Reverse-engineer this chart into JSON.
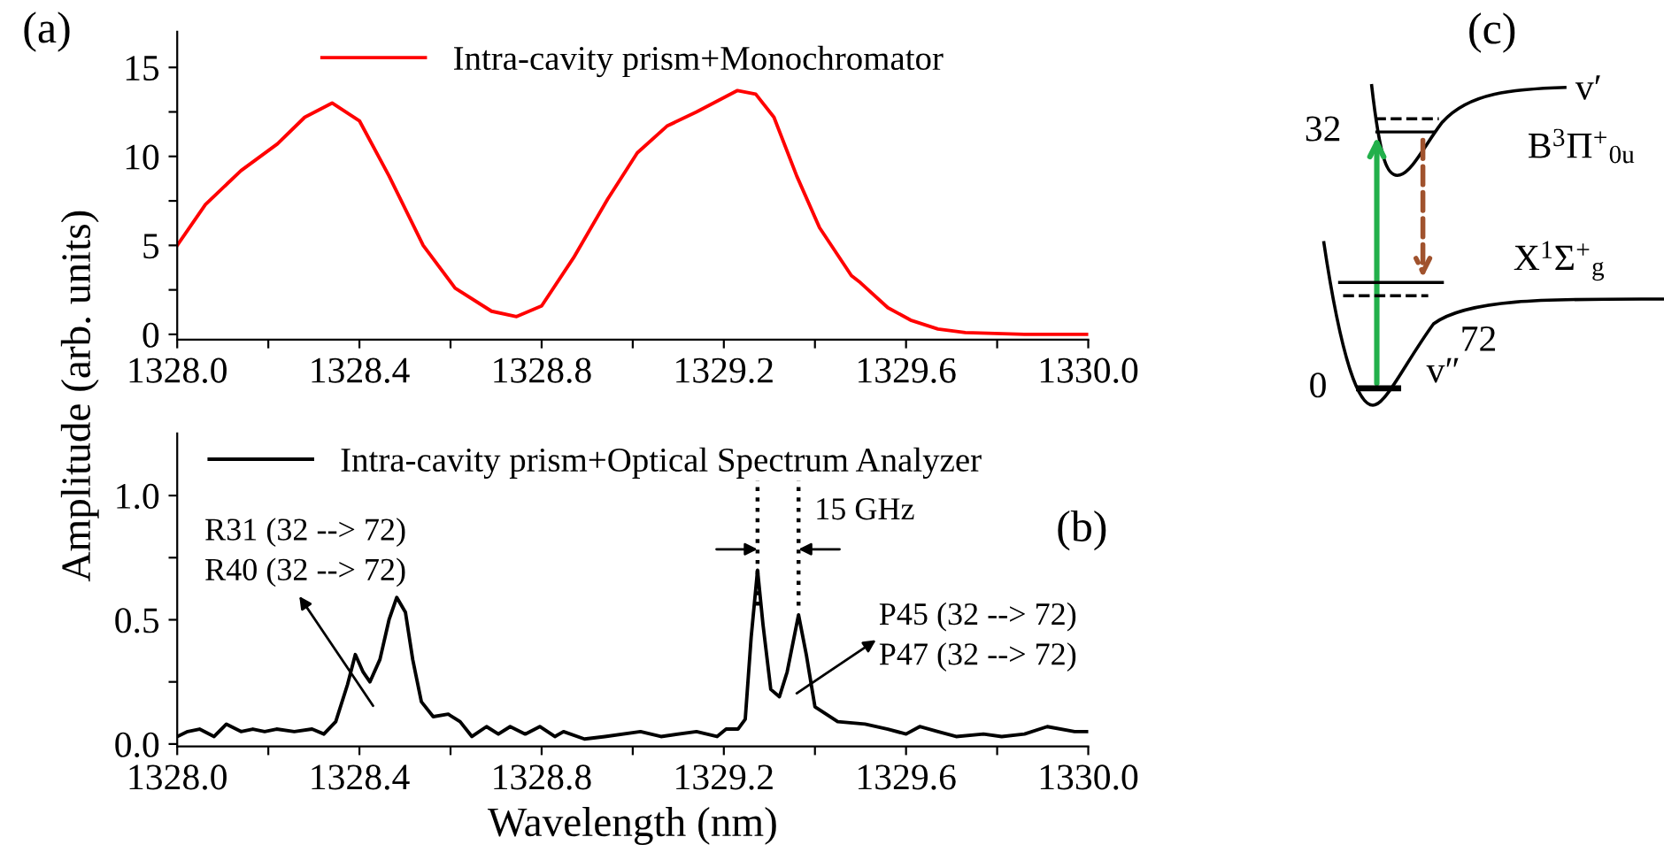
{
  "chart_data": [
    {
      "type": "line",
      "ylabel": "Amplitude (arb. units)",
      "annotations": [
        "(a)"
      ],
      "legend": "top",
      "x": [
        1328.0,
        1328.062,
        1328.14,
        1328.22,
        1328.28,
        1328.34,
        1328.4,
        1328.465,
        1328.54,
        1328.61,
        1328.69,
        1328.745,
        1328.8,
        1328.87,
        1328.945,
        1329.01,
        1329.075,
        1329.14,
        1329.23,
        1329.27,
        1329.31,
        1329.36,
        1329.41,
        1329.48,
        1329.5,
        1329.56,
        1329.61,
        1329.67,
        1329.73,
        1329.86,
        1330.0
      ],
      "series": [
        {
          "name": "Intra-cavity prism+Monochromator",
          "color": "#ff0000",
          "values": [
            5.0,
            7.3,
            9.2,
            10.7,
            12.2,
            13.0,
            12.0,
            8.9,
            5.0,
            2.6,
            1.3,
            1.0,
            1.6,
            4.3,
            7.6,
            10.2,
            11.7,
            12.5,
            13.7,
            13.5,
            12.2,
            8.9,
            6.0,
            3.3,
            2.9,
            1.5,
            0.8,
            0.3,
            0.1,
            0.0,
            0.0
          ]
        }
      ],
      "xlim": [
        1328.0,
        1330.0
      ],
      "ylim": [
        -0.3,
        17
      ],
      "xticks": [
        {
          "value": 1328.0,
          "label": "1328.0"
        },
        {
          "value": 1328.2,
          "label": null
        },
        {
          "value": 1328.4,
          "label": "1328.4"
        },
        {
          "value": 1328.6,
          "label": null
        },
        {
          "value": 1328.8,
          "label": "1328.8"
        },
        {
          "value": 1329.0,
          "label": null
        },
        {
          "value": 1329.2,
          "label": "1329.2"
        },
        {
          "value": 1329.4,
          "label": null
        },
        {
          "value": 1329.6,
          "label": "1329.6"
        },
        {
          "value": 1329.8,
          "label": null
        },
        {
          "value": 1330.0,
          "label": "1330.0"
        }
      ],
      "yticks": [
        0,
        {
          "value": 2.5,
          "label": null
        },
        5,
        {
          "value": 7.5,
          "label": null
        },
        10,
        {
          "value": 12.5,
          "label": null
        },
        15
      ],
      "grid": false,
      "marker": "none",
      "line_style": "solid"
    },
    {
      "type": "line",
      "xlabel": "Wavelength (nm)",
      "legend": "top left",
      "annotations": [
        "(b)",
        "R31 (32 --> 72)\nR40 (32 --> 72)",
        "P45 (32 --> 72)\nP47 (32 --> 72)"
      ],
      "ref_lines": [
        {
          "axis": "x",
          "value": 1329.274,
          "line_style": "dotted"
        },
        {
          "axis": "x",
          "value": 1329.364,
          "line_style": "dotted",
          "label": "15 GHz"
        }
      ],
      "x": [
        1328.0,
        1328.023,
        1328.049,
        1328.081,
        1328.108,
        1328.14,
        1328.166,
        1328.192,
        1328.218,
        1328.257,
        1328.296,
        1328.322,
        1328.348,
        1328.374,
        1328.391,
        1328.408,
        1328.423,
        1328.445,
        1328.465,
        1328.482,
        1328.501,
        1328.517,
        1328.536,
        1328.562,
        1328.595,
        1328.621,
        1328.647,
        1328.679,
        1328.705,
        1328.731,
        1328.764,
        1328.796,
        1328.829,
        1328.848,
        1328.894,
        1328.939,
        1329.017,
        1329.062,
        1329.14,
        1329.185,
        1329.205,
        1329.231,
        1329.247,
        1329.26,
        1329.274,
        1329.286,
        1329.303,
        1329.322,
        1329.339,
        1329.364,
        1329.381,
        1329.4,
        1329.45,
        1329.51,
        1329.56,
        1329.6,
        1329.63,
        1329.67,
        1329.71,
        1329.77,
        1329.81,
        1329.86,
        1329.91,
        1329.97,
        1330.0
      ],
      "series": [
        {
          "name": "Intra-cavity prism+Optical Spectrum Analyzer",
          "color": "#000000",
          "values": [
            0.03,
            0.05,
            0.06,
            0.03,
            0.08,
            0.05,
            0.06,
            0.05,
            0.06,
            0.05,
            0.06,
            0.04,
            0.09,
            0.24,
            0.36,
            0.29,
            0.25,
            0.34,
            0.5,
            0.59,
            0.53,
            0.34,
            0.17,
            0.11,
            0.12,
            0.09,
            0.03,
            0.07,
            0.04,
            0.07,
            0.04,
            0.07,
            0.03,
            0.05,
            0.02,
            0.03,
            0.05,
            0.03,
            0.05,
            0.03,
            0.06,
            0.06,
            0.1,
            0.43,
            0.7,
            0.48,
            0.22,
            0.19,
            0.29,
            0.52,
            0.36,
            0.15,
            0.09,
            0.08,
            0.06,
            0.04,
            0.07,
            0.05,
            0.03,
            0.04,
            0.03,
            0.04,
            0.07,
            0.05,
            0.05
          ]
        }
      ],
      "xlim": [
        1328.0,
        1330.0
      ],
      "ylim": [
        -0.01,
        1.25
      ],
      "xticks": [
        {
          "value": 1328.0,
          "label": "1328.0"
        },
        {
          "value": 1328.2,
          "label": null
        },
        {
          "value": 1328.4,
          "label": "1328.4"
        },
        {
          "value": 1328.6,
          "label": null
        },
        {
          "value": 1328.8,
          "label": "1328.8"
        },
        {
          "value": 1329.0,
          "label": null
        },
        {
          "value": 1329.2,
          "label": "1329.2"
        },
        {
          "value": 1329.4,
          "label": null
        },
        {
          "value": 1329.6,
          "label": "1329.6"
        },
        {
          "value": 1329.8,
          "label": null
        },
        {
          "value": 1330.0,
          "label": "1330.0"
        }
      ],
      "yticks": [
        {
          "value": 0.0,
          "label": "0.0"
        },
        {
          "value": 0.25,
          "label": null
        },
        {
          "value": 0.5,
          "label": "0.5"
        },
        {
          "value": 0.75,
          "label": null
        },
        {
          "value": 1.0,
          "label": "1.0"
        }
      ],
      "grid": false,
      "marker": "none",
      "line_style": "solid"
    },
    {
      "type": "other",
      "annotations": [
        "(c)",
        "v′",
        "32",
        "B$^{3}$Π$^{+}$$_{0u}$",
        "X$^{1}$Σ$^{+}$$_{g}$",
        "72",
        "0",
        "v″"
      ]
    }
  ]
}
